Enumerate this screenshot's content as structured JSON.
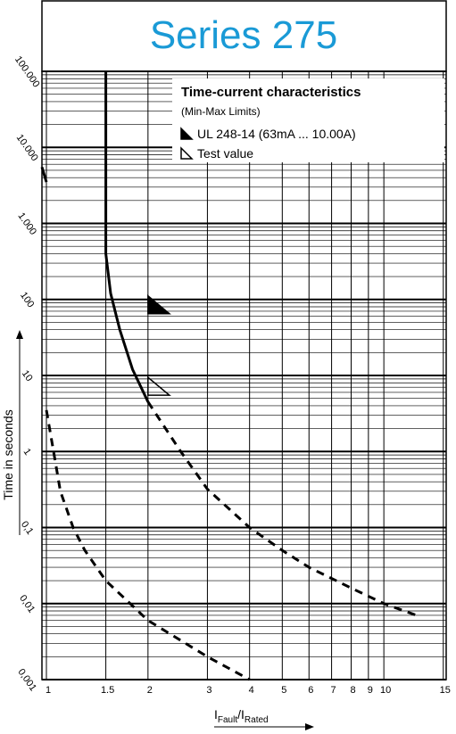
{
  "chart_data": {
    "type": "line",
    "title": "Series 275",
    "title_color": "#1a9ad6",
    "legend": {
      "title": "Time-current characteristics",
      "subtitle": "(Min-Max Limits)",
      "items": [
        {
          "label": "UL 248-14 (63mA ... 10.00A)",
          "style": "filled"
        },
        {
          "label": "Test value",
          "style": "open"
        }
      ],
      "position": "top-right"
    },
    "ylabel": "Time in seconds",
    "xlabel": [
      "I",
      "Fault",
      "/",
      "I",
      "Rated"
    ],
    "xlog": true,
    "ylog": true,
    "grid": true,
    "minor_grid": true,
    "xlim": [
      0.97,
      15.3
    ],
    "ylim": [
      0.001,
      100000
    ],
    "xticks": [
      1,
      1.5,
      2,
      3,
      4,
      5,
      6,
      7,
      8,
      9,
      10,
      15
    ],
    "yticks": [
      {
        "value": 100000,
        "label": "100.000"
      },
      {
        "value": 10000,
        "label": "10.000"
      },
      {
        "value": 1000,
        "label": "1.000"
      },
      100,
      10,
      1,
      {
        "value": 0.1,
        "label": "0,1"
      },
      {
        "value": 0.01,
        "label": "0,01"
      },
      {
        "value": 0.001,
        "label": "0,001"
      }
    ],
    "series": [
      {
        "color": "#000000",
        "dashed": false,
        "x": [
          0.97,
          1,
          null,
          1.5,
          1.5,
          1.55,
          1.65,
          1.8,
          2
        ],
        "values": [
          5500,
          3500,
          null,
          100000,
          400,
          120,
          40,
          12,
          4.5
        ]
      },
      {
        "color": "#000000",
        "dashed": true,
        "x": [
          1,
          1.05,
          1.1,
          1.2,
          1.3,
          1.5,
          2,
          3,
          4
        ],
        "values": [
          3.5,
          1,
          0.3,
          0.1,
          0.05,
          0.02,
          0.006,
          0.002,
          0.001
        ]
      },
      {
        "color": "#000000",
        "dashed": true,
        "x": [
          2,
          2.5,
          3,
          4,
          5,
          6,
          8,
          10,
          12.5
        ],
        "values": [
          4.5,
          1,
          0.32,
          0.1,
          0.05,
          0.03,
          0.016,
          0.01,
          0.007
        ]
      }
    ],
    "markers": [
      {
        "x": 2,
        "y": 65,
        "style": "filled"
      },
      {
        "x": 2,
        "y": 5.5,
        "style": "open"
      }
    ]
  }
}
